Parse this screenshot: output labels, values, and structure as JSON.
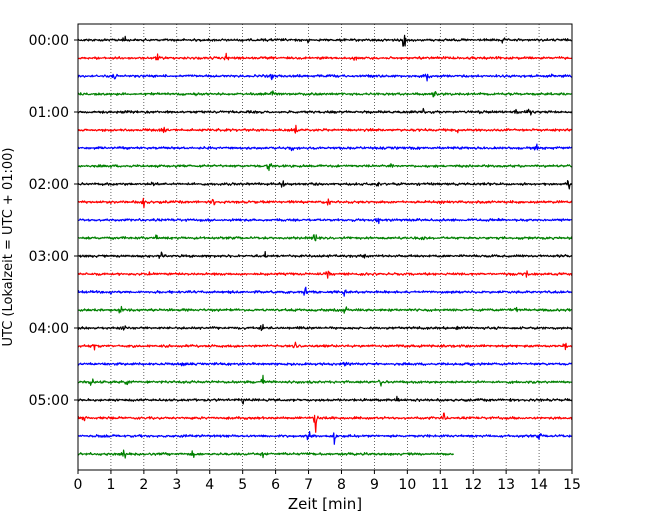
{
  "chart_data": {
    "type": "line",
    "xlabel": "Zeit  [min]",
    "ylabel": "UTC (Lokalzeit = UTC + 01:00)",
    "xlim": [
      0,
      15
    ],
    "x_ticks": [
      "0",
      "1",
      "2",
      "3",
      "4",
      "5",
      "6",
      "7",
      "8",
      "9",
      "10",
      "11",
      "12",
      "13",
      "14",
      "15"
    ],
    "y_tick_labels": [
      "00:00",
      "01:00",
      "02:00",
      "03:00",
      "04:00",
      "05:00"
    ],
    "grid_x": true,
    "grid_style": "dotted",
    "row_interval_minutes": 15,
    "colors": [
      "#000000",
      "#ff0000",
      "#0000ff",
      "#008000"
    ],
    "traces": [
      {
        "offset": "00:00",
        "color_index": 0,
        "x_end": 15,
        "events": [
          {
            "x": 9.9,
            "amp": 1.0
          },
          {
            "x": 1.4,
            "amp": 0.45
          },
          {
            "x": 7.0,
            "amp": 0.4
          },
          {
            "x": 12.9,
            "amp": 0.4
          }
        ]
      },
      {
        "offset": "00:15",
        "color_index": 1,
        "x_end": 15,
        "events": [
          {
            "x": 4.5,
            "amp": 0.7
          },
          {
            "x": 2.4,
            "amp": 0.4
          },
          {
            "x": 8.4,
            "amp": 0.4
          }
        ]
      },
      {
        "offset": "00:30",
        "color_index": 2,
        "x_end": 15,
        "events": [
          {
            "x": 1.1,
            "amp": 0.7
          },
          {
            "x": 5.9,
            "amp": 0.7
          },
          {
            "x": 10.6,
            "amp": 0.6
          },
          {
            "x": 14.4,
            "amp": 0.5
          }
        ]
      },
      {
        "offset": "00:45",
        "color_index": 3,
        "x_end": 15,
        "events": [
          {
            "x": 3.6,
            "amp": 0.5
          },
          {
            "x": 5.9,
            "amp": 0.6
          },
          {
            "x": 10.8,
            "amp": 0.7
          }
        ]
      },
      {
        "offset": "01:00",
        "color_index": 0,
        "x_end": 15,
        "events": [
          {
            "x": 12.2,
            "amp": 0.5
          },
          {
            "x": 13.3,
            "amp": 0.8
          },
          {
            "x": 13.7,
            "amp": 0.6
          },
          {
            "x": 10.5,
            "amp": 0.4
          }
        ]
      },
      {
        "offset": "01:15",
        "color_index": 1,
        "x_end": 15,
        "events": [
          {
            "x": 6.6,
            "amp": 0.7
          },
          {
            "x": 2.6,
            "amp": 0.4
          },
          {
            "x": 11.5,
            "amp": 0.4
          }
        ]
      },
      {
        "offset": "01:30",
        "color_index": 2,
        "x_end": 15,
        "events": [
          {
            "x": 13.9,
            "amp": 0.6
          },
          {
            "x": 6.5,
            "amp": 0.4
          }
        ]
      },
      {
        "offset": "01:45",
        "color_index": 3,
        "x_end": 15,
        "events": [
          {
            "x": 5.8,
            "amp": 0.8
          },
          {
            "x": 9.5,
            "amp": 0.4
          }
        ]
      },
      {
        "offset": "02:00",
        "color_index": 0,
        "x_end": 15,
        "events": [
          {
            "x": 6.2,
            "amp": 0.7
          },
          {
            "x": 2.3,
            "amp": 0.5
          },
          {
            "x": 14.9,
            "amp": 0.8
          },
          {
            "x": 9.1,
            "amp": 0.4
          }
        ]
      },
      {
        "offset": "02:15",
        "color_index": 1,
        "x_end": 15,
        "events": [
          {
            "x": 2.0,
            "amp": 0.9
          },
          {
            "x": 4.1,
            "amp": 0.5
          },
          {
            "x": 7.6,
            "amp": 0.4
          }
        ]
      },
      {
        "offset": "02:30",
        "color_index": 2,
        "x_end": 15,
        "events": [
          {
            "x": 9.1,
            "amp": 0.8
          },
          {
            "x": 4.9,
            "amp": 0.4
          },
          {
            "x": 12.8,
            "amp": 0.4
          }
        ]
      },
      {
        "offset": "02:45",
        "color_index": 3,
        "x_end": 15,
        "events": [
          {
            "x": 7.2,
            "amp": 0.8
          },
          {
            "x": 2.4,
            "amp": 0.5
          },
          {
            "x": 10.5,
            "amp": 0.4
          }
        ]
      },
      {
        "offset": "03:00",
        "color_index": 0,
        "x_end": 15,
        "events": [
          {
            "x": 2.5,
            "amp": 0.7
          },
          {
            "x": 5.7,
            "amp": 0.5
          },
          {
            "x": 8.7,
            "amp": 0.4
          }
        ]
      },
      {
        "offset": "03:15",
        "color_index": 1,
        "x_end": 15,
        "events": [
          {
            "x": 2.2,
            "amp": 0.5
          },
          {
            "x": 7.6,
            "amp": 0.6
          },
          {
            "x": 13.6,
            "amp": 0.6
          }
        ]
      },
      {
        "offset": "03:30",
        "color_index": 2,
        "x_end": 15,
        "events": [
          {
            "x": 6.9,
            "amp": 0.8
          },
          {
            "x": 1.0,
            "amp": 0.4
          },
          {
            "x": 8.1,
            "amp": 0.4
          }
        ]
      },
      {
        "offset": "03:45",
        "color_index": 3,
        "x_end": 15,
        "events": [
          {
            "x": 1.3,
            "amp": 0.6
          },
          {
            "x": 8.1,
            "amp": 0.6
          },
          {
            "x": 13.3,
            "amp": 0.4
          }
        ]
      },
      {
        "offset": "04:00",
        "color_index": 0,
        "x_end": 15,
        "events": [
          {
            "x": 5.6,
            "amp": 0.6
          },
          {
            "x": 1.4,
            "amp": 0.4
          },
          {
            "x": 11.5,
            "amp": 0.4
          }
        ]
      },
      {
        "offset": "04:15",
        "color_index": 1,
        "x_end": 15,
        "events": [
          {
            "x": 0.5,
            "amp": 0.5
          },
          {
            "x": 6.6,
            "amp": 0.5
          },
          {
            "x": 14.8,
            "amp": 0.6
          }
        ]
      },
      {
        "offset": "04:30",
        "color_index": 2,
        "x_end": 15,
        "events": [
          {
            "x": 8.1,
            "amp": 0.6
          },
          {
            "x": 3.2,
            "amp": 0.4
          },
          {
            "x": 11.9,
            "amp": 0.4
          }
        ]
      },
      {
        "offset": "04:45",
        "color_index": 3,
        "x_end": 15,
        "events": [
          {
            "x": 5.6,
            "amp": 0.9
          },
          {
            "x": 0.4,
            "amp": 0.6
          },
          {
            "x": 1.5,
            "amp": 0.5
          },
          {
            "x": 9.2,
            "amp": 0.5
          }
        ]
      },
      {
        "offset": "05:00",
        "color_index": 0,
        "x_end": 15,
        "events": [
          {
            "x": 5.0,
            "amp": 0.6
          },
          {
            "x": 9.7,
            "amp": 0.6
          },
          {
            "x": 13.1,
            "amp": 0.4
          }
        ]
      },
      {
        "offset": "05:15",
        "color_index": 1,
        "x_end": 15,
        "events": [
          {
            "x": 7.2,
            "amp": 2.1
          },
          {
            "x": 11.1,
            "amp": 0.8
          },
          {
            "x": 0.2,
            "amp": 0.4
          }
        ]
      },
      {
        "offset": "05:30",
        "color_index": 2,
        "x_end": 15,
        "events": [
          {
            "x": 7.8,
            "amp": 1.3
          },
          {
            "x": 7.0,
            "amp": 0.7
          },
          {
            "x": 14.0,
            "amp": 0.5
          }
        ]
      },
      {
        "offset": "05:45",
        "color_index": 3,
        "x_end": 11.4,
        "events": [
          {
            "x": 1.4,
            "amp": 0.6
          },
          {
            "x": 3.5,
            "amp": 0.4
          },
          {
            "x": 5.6,
            "amp": 0.4
          }
        ]
      }
    ]
  }
}
